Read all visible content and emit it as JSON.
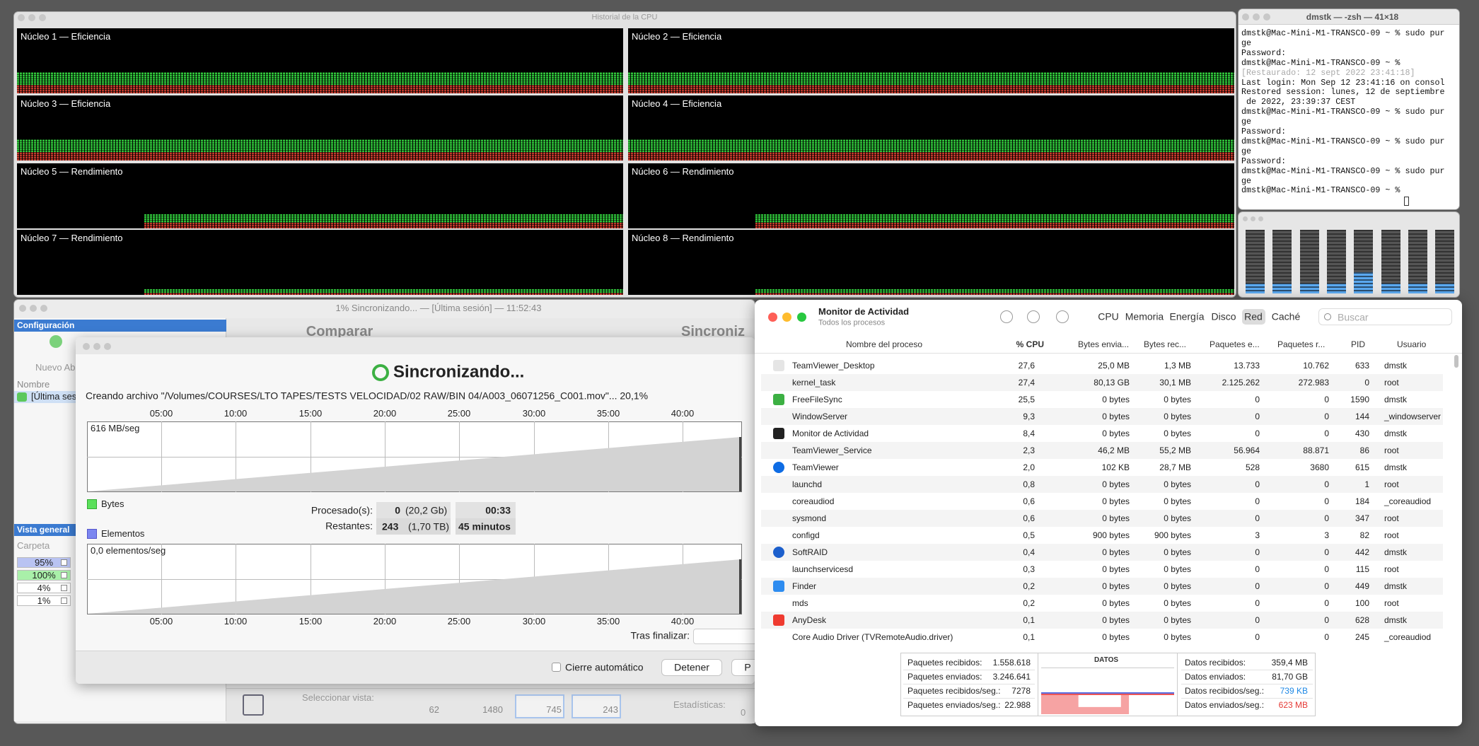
{
  "cpu_history": {
    "title": "Historial de la CPU",
    "cores": [
      "Núcleo 1 — Eficiencia",
      "Núcleo 2 — Eficiencia",
      "Núcleo 3 — Eficiencia",
      "Núcleo 4 — Eficiencia",
      "Núcleo 5 — Rendimiento",
      "Núcleo 6 — Rendimiento",
      "Núcleo 7 — Rendimiento",
      "Núcleo 8 — Rendimiento"
    ]
  },
  "terminal": {
    "title": "dmstk — -zsh — 41×18",
    "lines": [
      "dmstk@Mac-Mini-M1-TRANSCO-09 ~ % sudo pur",
      "ge",
      "Password:",
      "dmstk@Mac-Mini-M1-TRANSCO-09 ~ %",
      "[Restaurado: 12 sept 2022 23:41:18]",
      "Last login: Mon Sep 12 23:41:16 on consol",
      "Restored session: lunes, 12 de septiembre",
      " de 2022, 23:39:37 CEST",
      "dmstk@Mac-Mini-M1-TRANSCO-09 ~ % sudo pur",
      "ge",
      "Password:",
      "dmstk@Mac-Mini-M1-TRANSCO-09 ~ % sudo pur",
      "ge",
      "Password:",
      "dmstk@Mac-Mini-M1-TRANSCO-09 ~ % sudo pur",
      "ge",
      "dmstk@Mac-Mini-M1-TRANSCO-09 ~ %"
    ]
  },
  "free_file_sync": {
    "title": "1% Sincronizando... — [Última sesión] — 11:52:43",
    "sidebar": {
      "config_header": "Configuración",
      "new_button": "Nuevo Ab",
      "name_header": "Nombre",
      "session": "[Última ses",
      "overview_header": "Vista general",
      "folder_header": "Carpeta",
      "percentages": [
        "95%",
        "100%",
        "4%",
        "1%"
      ]
    },
    "toolbar": {
      "compare": "Comparar",
      "sync": "Sincroniz"
    },
    "statusbar": {
      "view_label": "Seleccionar vista:",
      "counts": [
        "62",
        "1480",
        "745",
        "243"
      ],
      "stats_label": "Estadísticas:",
      "stats_value": "0"
    }
  },
  "sync_dialog": {
    "heading": "Sincronizando...",
    "status": "Creando archivo \"/Volumes/COURSES/LTO TAPES/TESTS VELOCIDAD/02 RAW/BIN 04/A003_06071256_C001.mov\"... 20,1%",
    "time_labels": [
      "05:00",
      "10:00",
      "15:00",
      "20:00",
      "25:00",
      "30:00",
      "35:00",
      "40:00"
    ],
    "bytes_graph_label": "616 MB/seg",
    "bytes_legend": "Bytes",
    "items_legend": "Elementos",
    "items_graph_label": "0,0 elementos/seg",
    "processed_label": "Procesado(s):",
    "processed_count": "0",
    "processed_size": "(20,2 Gb)",
    "elapsed": "00:33",
    "remaining_label": "Restantes:",
    "remaining_count": "243",
    "remaining_size": "(1,70 TB)",
    "remaining_time": "45 minutos",
    "after_label": "Tras finalizar:",
    "auto_close": "Cierre automático",
    "stop_button": "Detener",
    "pause_button": "P"
  },
  "activity_monitor": {
    "title": "Monitor de Actividad",
    "subtitle": "Todos los procesos",
    "tabs": [
      "CPU",
      "Memoria",
      "Energía",
      "Disco",
      "Red",
      "Caché"
    ],
    "search_placeholder": "Buscar",
    "columns": [
      "Nombre del proceso",
      "% CPU",
      "Bytes envia...",
      "Bytes rec...",
      "Paquetes e...",
      "Paquetes r...",
      "PID",
      "Usuario"
    ],
    "rows": [
      [
        "TeamViewer_Desktop",
        "27,6",
        "25,0 MB",
        "1,3 MB",
        "13.733",
        "10.762",
        "633",
        "dmstk"
      ],
      [
        "kernel_task",
        "27,4",
        "80,13 GB",
        "30,1 MB",
        "2.125.262",
        "272.983",
        "0",
        "root"
      ],
      [
        "FreeFileSync",
        "25,5",
        "0 bytes",
        "0 bytes",
        "0",
        "0",
        "1590",
        "dmstk"
      ],
      [
        "WindowServer",
        "9,3",
        "0 bytes",
        "0 bytes",
        "0",
        "0",
        "144",
        "_windowserver"
      ],
      [
        "Monitor de Actividad",
        "8,4",
        "0 bytes",
        "0 bytes",
        "0",
        "0",
        "430",
        "dmstk"
      ],
      [
        "TeamViewer_Service",
        "2,3",
        "46,2 MB",
        "55,2 MB",
        "56.964",
        "88.871",
        "86",
        "root"
      ],
      [
        "TeamViewer",
        "2,0",
        "102 KB",
        "28,7 MB",
        "528",
        "3680",
        "615",
        "dmstk"
      ],
      [
        "launchd",
        "0,8",
        "0 bytes",
        "0 bytes",
        "0",
        "0",
        "1",
        "root"
      ],
      [
        "coreaudiod",
        "0,6",
        "0 bytes",
        "0 bytes",
        "0",
        "0",
        "184",
        "_coreaudiod"
      ],
      [
        "sysmond",
        "0,6",
        "0 bytes",
        "0 bytes",
        "0",
        "0",
        "347",
        "root"
      ],
      [
        "configd",
        "0,5",
        "900 bytes",
        "900 bytes",
        "3",
        "3",
        "82",
        "root"
      ],
      [
        "SoftRAID",
        "0,4",
        "0 bytes",
        "0 bytes",
        "0",
        "0",
        "442",
        "dmstk"
      ],
      [
        "launchservicesd",
        "0,3",
        "0 bytes",
        "0 bytes",
        "0",
        "0",
        "115",
        "root"
      ],
      [
        "Finder",
        "0,2",
        "0 bytes",
        "0 bytes",
        "0",
        "0",
        "449",
        "dmstk"
      ],
      [
        "mds",
        "0,2",
        "0 bytes",
        "0 bytes",
        "0",
        "0",
        "100",
        "root"
      ],
      [
        "AnyDesk",
        "0,1",
        "0 bytes",
        "0 bytes",
        "0",
        "0",
        "628",
        "dmstk"
      ],
      [
        "Core Audio Driver (TVRemoteAudio.driver)",
        "0,1",
        "0 bytes",
        "0 bytes",
        "0",
        "0",
        "245",
        "_coreaudiod"
      ]
    ],
    "packets": [
      {
        "label": "Paquetes recibidos:",
        "value": "1.558.618"
      },
      {
        "label": "Paquetes enviados:",
        "value": "3.246.641"
      },
      {
        "label": "Paquetes recibidos/seg.:",
        "value": "7278"
      },
      {
        "label": "Paquetes enviados/seg.:",
        "value": "22.988"
      }
    ],
    "graph_label": "DATOS",
    "data": [
      {
        "label": "Datos recibidos:",
        "value": "359,4 MB"
      },
      {
        "label": "Datos enviados:",
        "value": "81,70 GB"
      },
      {
        "label": "Datos recibidos/seg.:",
        "value": "739 KB"
      },
      {
        "label": "Datos enviados/seg.:",
        "value": "623 MB"
      }
    ]
  }
}
